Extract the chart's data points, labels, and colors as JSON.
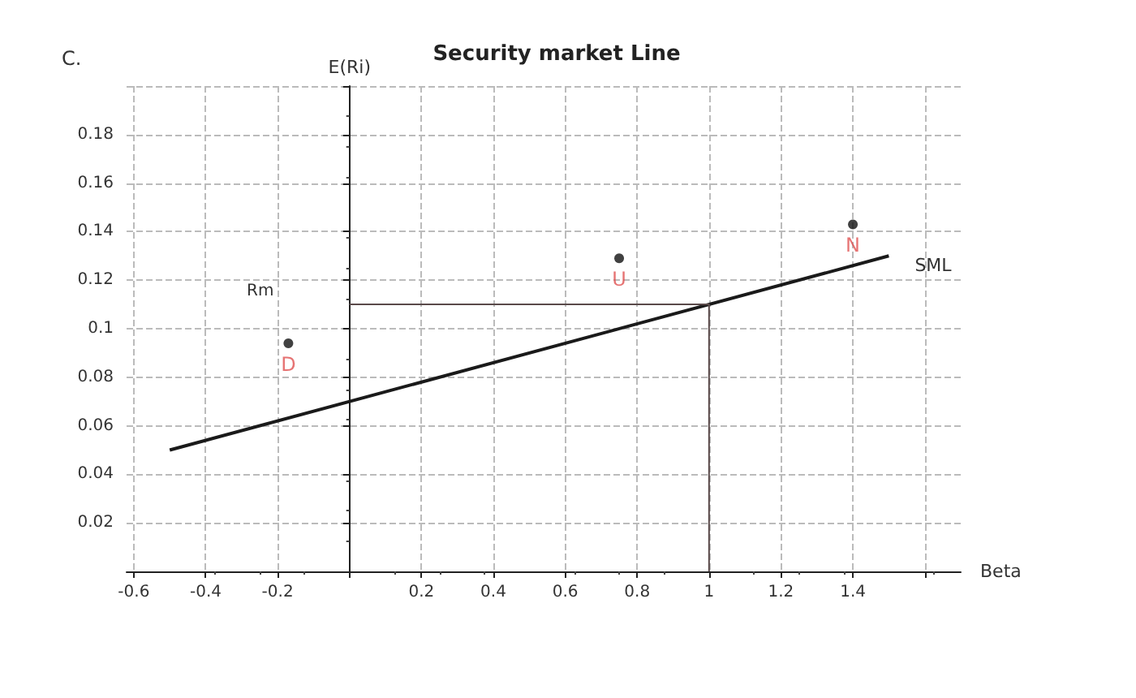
{
  "chart_data": {
    "type": "line",
    "title": "Security market Line",
    "xlabel": "Beta",
    "ylabel": "E(Ri)",
    "xlim": [
      -0.62,
      1.7
    ],
    "xticks": [
      -0.6,
      -0.4,
      -0.2,
      {
        "value": 0,
        "label": null
      },
      0.2,
      0.4,
      0.6,
      0.8,
      1,
      1.2,
      1.4,
      {
        "value": 1.6,
        "label": null
      }
    ],
    "ylim": [
      0,
      0.2
    ],
    "yticks": [
      {
        "value": 0,
        "label": null
      },
      0.02,
      0.04,
      0.06,
      0.08,
      0.1,
      0.12,
      0.14,
      0.16,
      0.18,
      {
        "value": 0.2,
        "label": null
      }
    ],
    "grid": true,
    "series": [
      {
        "name": "SML",
        "color": "#1a1a1a",
        "x": [
          -0.5,
          1.5
        ],
        "values": [
          0.05,
          0.13
        ]
      },
      {
        "type": "line",
        "color": "#5a4a4a",
        "x": [
          0,
          1,
          1
        ],
        "values": [
          0.11,
          0.11,
          0
        ]
      },
      {
        "type": "scatter",
        "color": "#111111",
        "x": [
          -0.17,
          0.75,
          1.4
        ],
        "values": [
          0.094,
          0.129,
          0.143
        ],
        "value_labels": [
          "D",
          "U",
          "N"
        ]
      }
    ],
    "annotations": [
      "C.",
      "Rm"
    ]
  }
}
